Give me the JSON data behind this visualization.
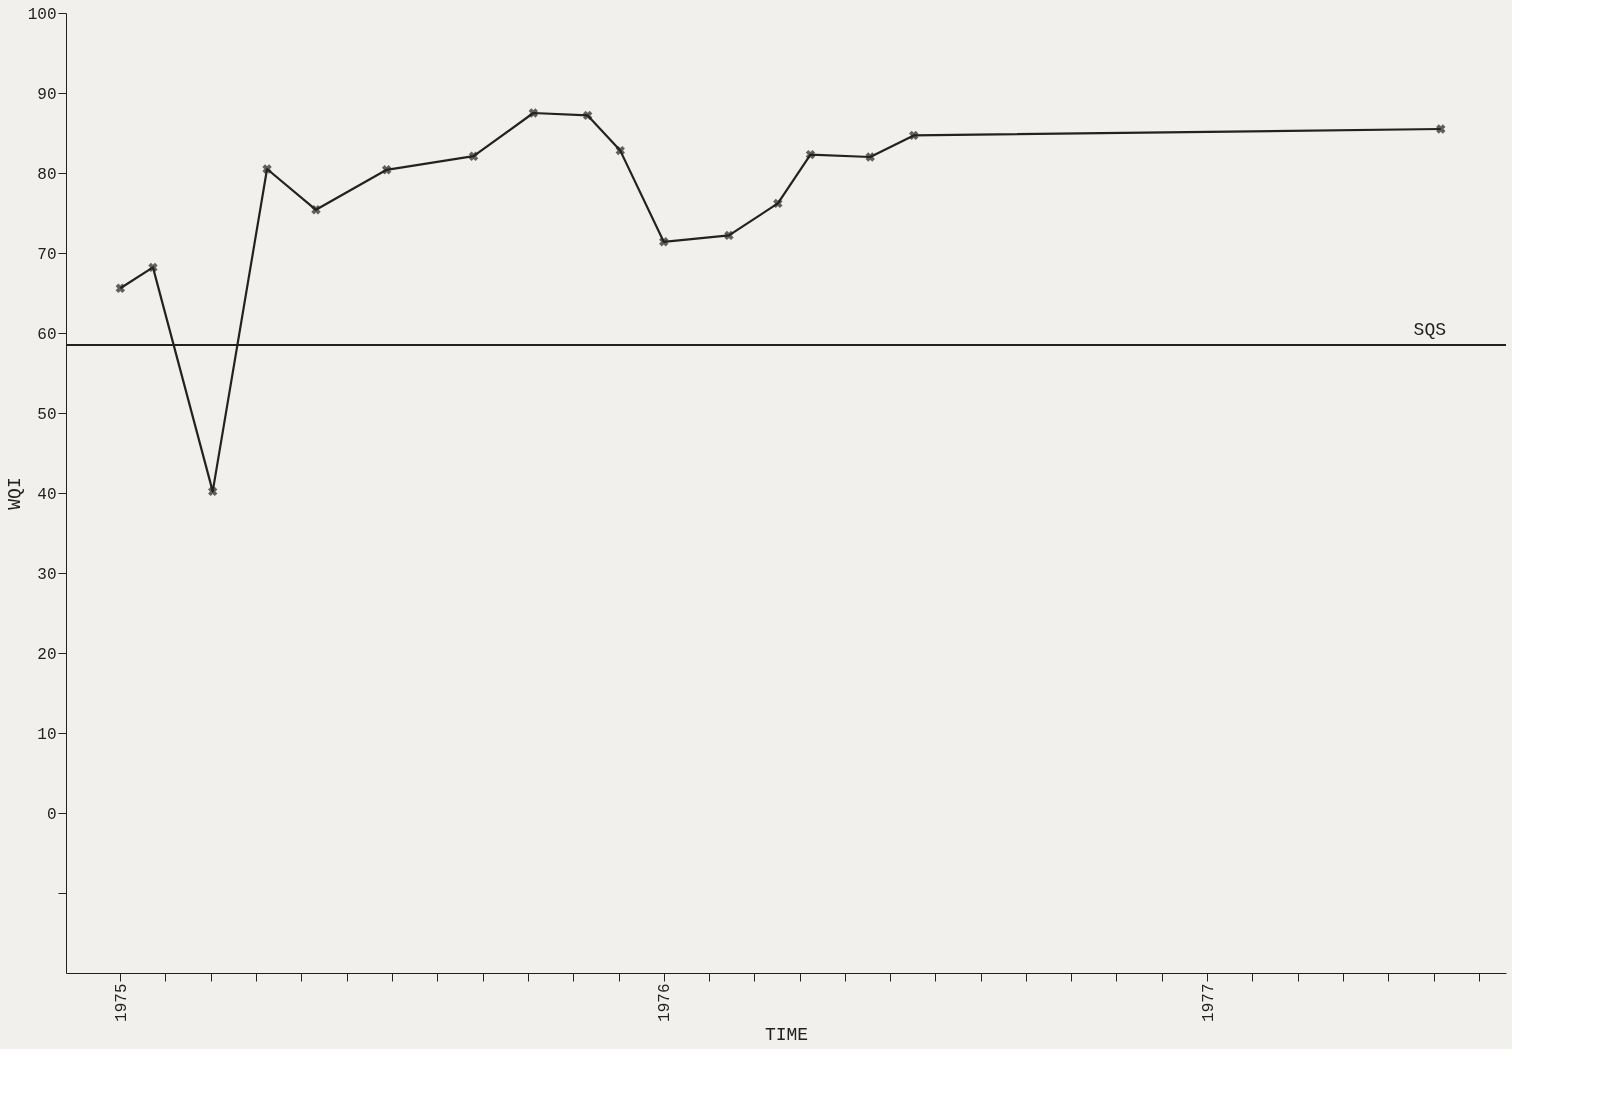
{
  "chart_data": {
    "type": "line",
    "xlabel": "TIME",
    "ylabel": "WQI",
    "x": [
      1975.0,
      1975.06,
      1975.17,
      1975.27,
      1975.36,
      1975.49,
      1975.65,
      1975.76,
      1975.86,
      1975.92,
      1976.0,
      1976.12,
      1976.21,
      1976.27,
      1976.38,
      1976.46,
      1977.43
    ],
    "series": [
      {
        "color": "#222222",
        "values": [
          65.6,
          68.2,
          40.2,
          80.5,
          75.4,
          80.4,
          82.1,
          87.5,
          87.2,
          82.8,
          71.4,
          72.2,
          76.2,
          82.3,
          82.0,
          84.7,
          85.5
        ]
      }
    ],
    "xlim": [
      1974.9,
      1977.55
    ],
    "ylim": [
      -20,
      100
    ],
    "xticks": [
      1975,
      {
        "value": 1975.083,
        "label": null
      },
      {
        "value": 1975.167,
        "label": null
      },
      {
        "value": 1975.25,
        "label": null
      },
      {
        "value": 1975.333,
        "label": null
      },
      {
        "value": 1975.417,
        "label": null
      },
      {
        "value": 1975.5,
        "label": null
      },
      {
        "value": 1975.583,
        "label": null
      },
      {
        "value": 1975.667,
        "label": null
      },
      {
        "value": 1975.75,
        "label": null
      },
      {
        "value": 1975.833,
        "label": null
      },
      {
        "value": 1975.917,
        "label": null
      },
      1976,
      {
        "value": 1976.083,
        "label": null
      },
      {
        "value": 1976.167,
        "label": null
      },
      {
        "value": 1976.25,
        "label": null
      },
      {
        "value": 1976.333,
        "label": null
      },
      {
        "value": 1976.417,
        "label": null
      },
      {
        "value": 1976.5,
        "label": null
      },
      {
        "value": 1976.583,
        "label": null
      },
      {
        "value": 1976.667,
        "label": null
      },
      {
        "value": 1976.75,
        "label": null
      },
      {
        "value": 1976.833,
        "label": null
      },
      {
        "value": 1976.917,
        "label": null
      },
      1977,
      {
        "value": 1977.083,
        "label": null
      },
      {
        "value": 1977.167,
        "label": null
      },
      {
        "value": 1977.25,
        "label": null
      },
      {
        "value": 1977.333,
        "label": null
      },
      {
        "value": 1977.417,
        "label": null
      },
      {
        "value": 1977.5,
        "label": null
      }
    ],
    "yticks": [
      {
        "value": -10,
        "label": null
      },
      0,
      10,
      20,
      30,
      40,
      50,
      60,
      70,
      80,
      90,
      100
    ],
    "ref_lines": [
      {
        "axis": "y",
        "value": 58.5,
        "label": "SQS",
        "color": "#222222"
      }
    ],
    "marker": "cross",
    "line_style": "solid",
    "grid": false
  }
}
